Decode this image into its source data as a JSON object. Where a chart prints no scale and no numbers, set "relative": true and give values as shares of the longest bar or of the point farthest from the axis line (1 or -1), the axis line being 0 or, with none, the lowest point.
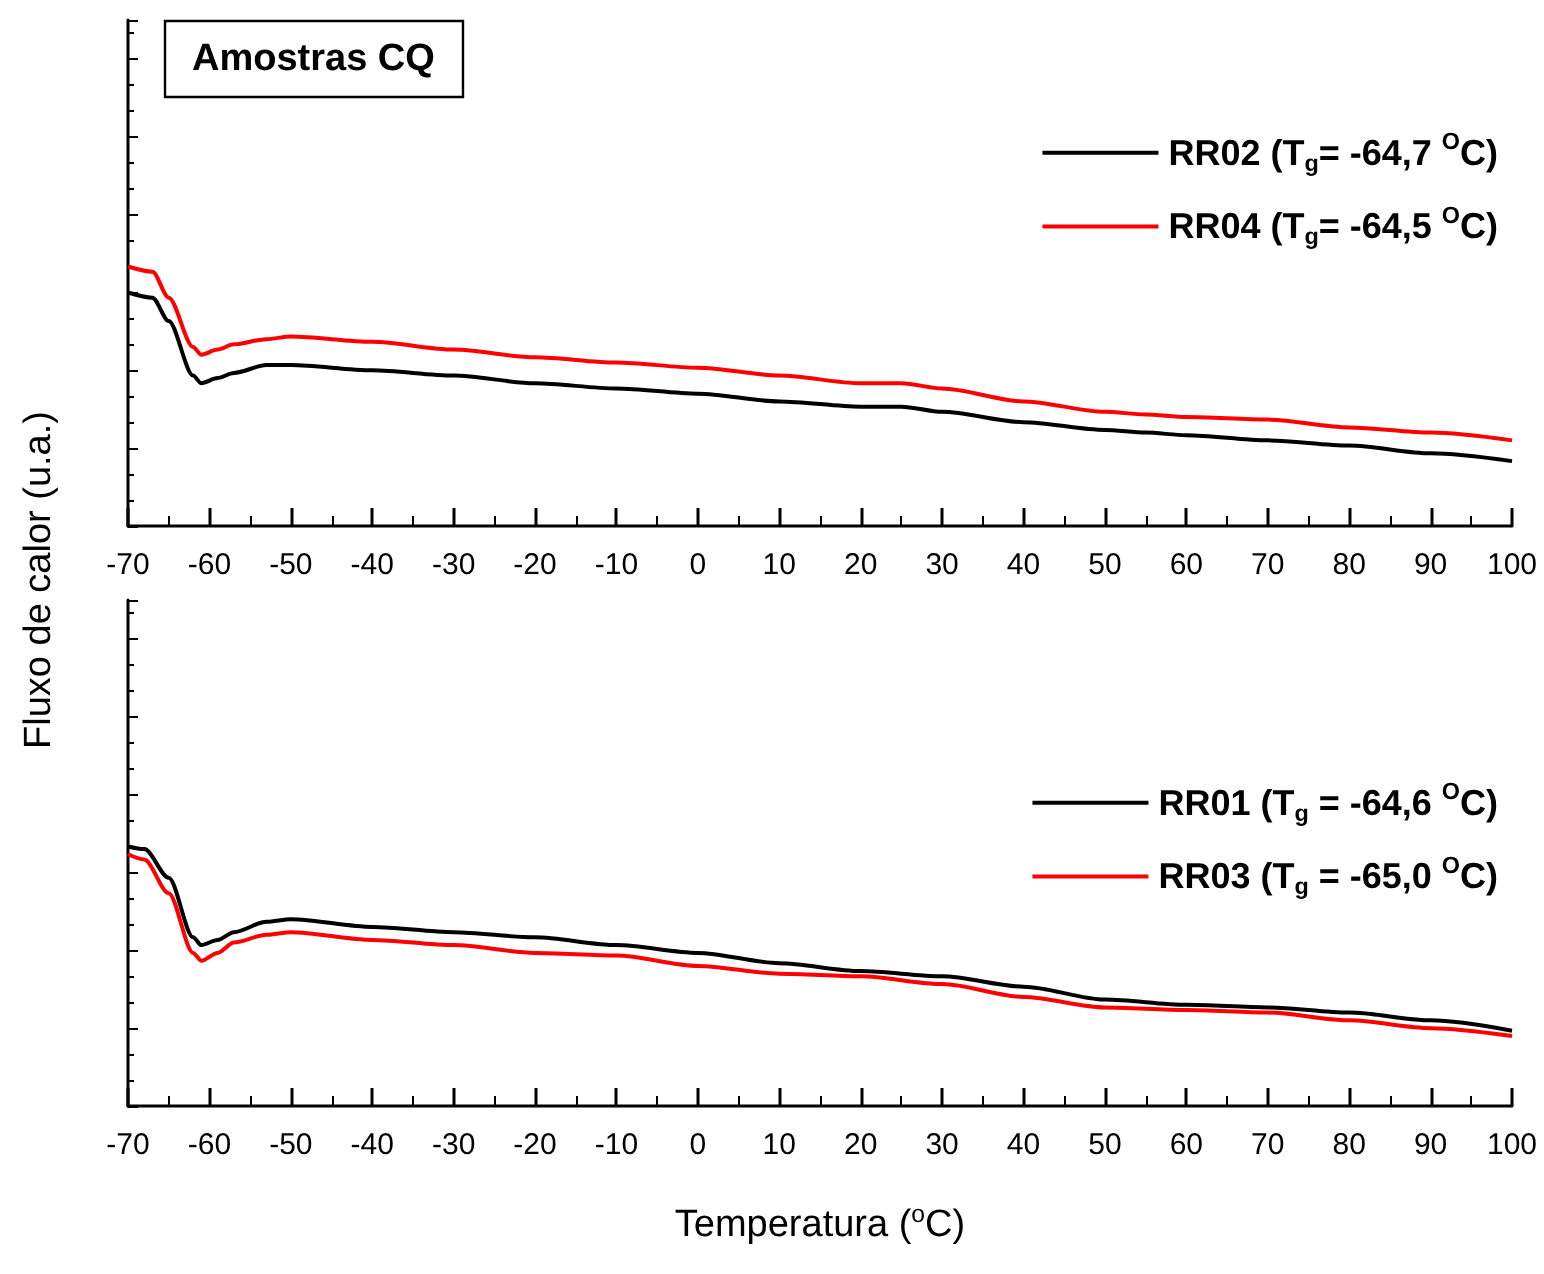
{
  "chart_data": [
    {
      "type": "line",
      "title": "Amostras CQ",
      "ylabel": "Fluxo de calor (u.a.)",
      "relative": true,
      "marker": "none",
      "line_style": "solid",
      "grid": false,
      "legend": "top right",
      "tick_labels": "x",
      "x": [
        -70,
        -67,
        -65,
        -62,
        -61,
        -59,
        -57,
        -53,
        -50,
        -40,
        -30,
        -20,
        -10,
        0,
        10,
        20,
        25,
        30,
        40,
        50,
        55,
        60,
        70,
        80,
        90,
        100
      ],
      "xlim": [
        -70,
        100
      ],
      "xticks": [
        -70,
        -60,
        -50,
        -40,
        -30,
        -20,
        -10,
        0,
        10,
        20,
        30,
        40,
        50,
        60,
        70,
        80,
        90,
        100
      ],
      "series": [
        {
          "name": "RR02 (T$_{g}$= -64,7 $^{O}$C)",
          "color": "#000000",
          "values": [
            0.9,
            0.88,
            0.79,
            0.58,
            0.55,
            0.57,
            0.59,
            0.62,
            0.62,
            0.6,
            0.58,
            0.55,
            0.53,
            0.51,
            0.48,
            0.46,
            0.46,
            0.44,
            0.4,
            0.37,
            0.36,
            0.35,
            0.33,
            0.31,
            0.28,
            0.25
          ]
        },
        {
          "name": "RR04 (T$_{g}$= -64,5 $^{O}$C)",
          "color": "#ff0000",
          "values": [
            1.0,
            0.98,
            0.88,
            0.69,
            0.66,
            0.68,
            0.7,
            0.72,
            0.73,
            0.71,
            0.68,
            0.65,
            0.63,
            0.61,
            0.58,
            0.55,
            0.55,
            0.53,
            0.48,
            0.44,
            0.43,
            0.42,
            0.41,
            0.38,
            0.36,
            0.33
          ]
        }
      ]
    },
    {
      "type": "line",
      "xlabel": "Temperatura ($^{o}$C)",
      "relative": true,
      "marker": "none",
      "line_style": "solid",
      "grid": false,
      "legend": "right",
      "tick_labels": "x",
      "x": [
        -70,
        -68,
        -65,
        -62,
        -61,
        -59,
        -57,
        -53,
        -50,
        -40,
        -30,
        -20,
        -10,
        0,
        10,
        20,
        30,
        40,
        50,
        60,
        70,
        80,
        90,
        100
      ],
      "xlim": [
        -70,
        100
      ],
      "xticks": [
        -70,
        -60,
        -50,
        -40,
        -30,
        -20,
        -10,
        0,
        10,
        20,
        30,
        40,
        50,
        60,
        70,
        80,
        90,
        100
      ],
      "series": [
        {
          "name": "RR01 (T$_{g}$ = -64,6 $^{O}$C)",
          "color": "#000000",
          "values": [
            1.0,
            0.99,
            0.88,
            0.65,
            0.62,
            0.64,
            0.67,
            0.71,
            0.72,
            0.69,
            0.67,
            0.65,
            0.62,
            0.59,
            0.55,
            0.52,
            0.5,
            0.46,
            0.41,
            0.39,
            0.38,
            0.36,
            0.33,
            0.29
          ]
        },
        {
          "name": "RR03 (T$_{g}$ = -65,0 $^{O}$C)",
          "color": "#ff0000",
          "values": [
            0.97,
            0.95,
            0.82,
            0.59,
            0.56,
            0.59,
            0.63,
            0.66,
            0.67,
            0.64,
            0.62,
            0.59,
            0.58,
            0.54,
            0.51,
            0.5,
            0.47,
            0.42,
            0.38,
            0.37,
            0.36,
            0.33,
            0.3,
            0.27
          ]
        }
      ]
    }
  ]
}
